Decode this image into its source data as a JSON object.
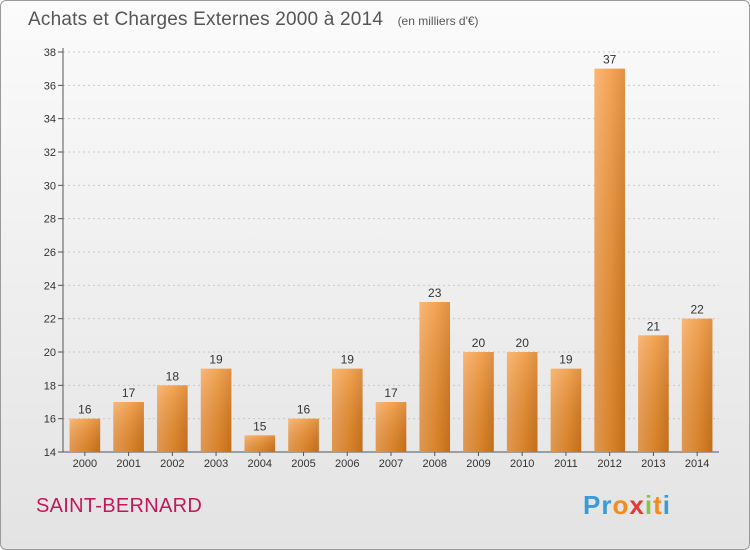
{
  "header": {
    "title": "Achats et Charges Externes 2000 à 2014",
    "unit": "(en milliers d'€)"
  },
  "footer": {
    "commune": "SAINT-BERNARD",
    "logo_letters": [
      "P",
      "r",
      "o",
      "x",
      "i",
      "t",
      "i"
    ],
    "logo_colors": [
      "#3a9bd8",
      "#3a9bd8",
      "#f28c1e",
      "#e53935",
      "#8bc34a",
      "#f28c1e",
      "#3a9bd8"
    ]
  },
  "chart_data": {
    "type": "bar",
    "title": "Achats et Charges Externes 2000 à 2014",
    "xlabel": "",
    "ylabel": "",
    "categories": [
      "2000",
      "2001",
      "2002",
      "2003",
      "2004",
      "2005",
      "2006",
      "2007",
      "2008",
      "2009",
      "2010",
      "2011",
      "2012",
      "2013",
      "2014"
    ],
    "values": [
      16,
      17,
      18,
      19,
      15,
      16,
      19,
      17,
      23,
      20,
      20,
      19,
      37,
      21,
      22
    ],
    "ylim": [
      14,
      38
    ],
    "yticks": [
      14,
      16,
      18,
      20,
      22,
      24,
      26,
      28,
      30,
      32,
      34,
      36,
      38
    ],
    "grid": true,
    "bar_color": "#f0912f"
  }
}
